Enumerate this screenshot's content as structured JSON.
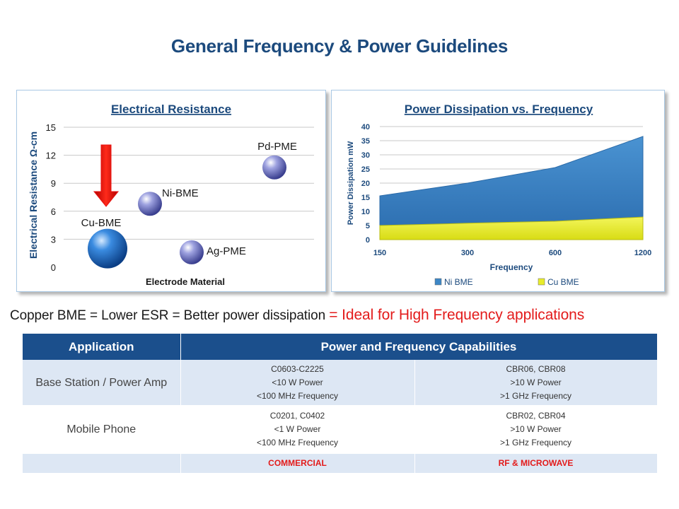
{
  "page": {
    "title": "General Frequency & Power Guidelines"
  },
  "resistance_chart": {
    "title": "Electrical Resistance",
    "xlabel": "Electrode Material",
    "ylabel": "Electrical Resistance Ω-cm",
    "y_ticks": [
      "0",
      "3",
      "6",
      "9",
      "12",
      "15"
    ],
    "arrow_color": "#e8110f",
    "chart_data": {
      "type": "scatter",
      "title": "Electrical Resistance",
      "xlabel": "Electrode Material",
      "ylabel": "Electrical Resistance Ω-cm",
      "ylim": [
        0,
        15
      ],
      "grid": true,
      "points": [
        {
          "label": "Cu-BME",
          "y": 2.0,
          "color": "#1f6fc8"
        },
        {
          "label": "Ni-BME",
          "y": 6.8,
          "color": "#7a7ec8"
        },
        {
          "label": "Ag-PME",
          "y": 1.6,
          "color": "#7a7ec8"
        },
        {
          "label": "Pd-PME",
          "y": 10.7,
          "color": "#7a7ec8"
        }
      ]
    }
  },
  "power_chart": {
    "title": "Power Dissipation vs. Frequency",
    "xlabel": "Frequency",
    "ylabel": "Power Dissipation mW",
    "y_ticks": [
      "0",
      "5",
      "10",
      "15",
      "20",
      "25",
      "30",
      "35",
      "40"
    ],
    "chart_data": {
      "type": "area",
      "title": "Power Dissipation vs. Frequency",
      "xlabel": "Frequency",
      "ylabel": "Power Dissipation mW",
      "ylim": [
        0,
        40
      ],
      "grid": true,
      "legend": "bottom",
      "categories": [
        "150",
        "300",
        "600",
        "1200"
      ],
      "series": [
        {
          "name": "Ni BME",
          "values": [
            15.5,
            20,
            25.5,
            36.5
          ],
          "color": "#3d87c6"
        },
        {
          "name": "Cu BME",
          "values": [
            5,
            5.8,
            6.5,
            8
          ],
          "color": "#e8ec2b"
        }
      ]
    }
  },
  "tagline": {
    "main": "Copper BME = Lower ESR = Better power dissipation",
    "highlight": "= Ideal for High Frequency applications"
  },
  "table": {
    "headers": [
      "Application",
      "Power and Frequency Capabilities"
    ],
    "rows": [
      {
        "application": "Base Station  / Power Amp",
        "commercial": [
          "C0603-C2225",
          "<10 W Power",
          "<100 MHz Frequency"
        ],
        "rf": [
          "CBR06, CBR08",
          ">10 W Power",
          ">1 GHz Frequency"
        ]
      },
      {
        "application": "Mobile Phone",
        "commercial": [
          "C0201, C0402",
          "<1 W Power",
          "<100 MHz Frequency"
        ],
        "rf": [
          "CBR02, CBR04",
          ">10 W Power",
          ">1 GHz Frequency"
        ]
      }
    ],
    "footer": {
      "application": "",
      "commercial": "COMMERCIAL",
      "rf": "RF & MICROWAVE"
    }
  }
}
